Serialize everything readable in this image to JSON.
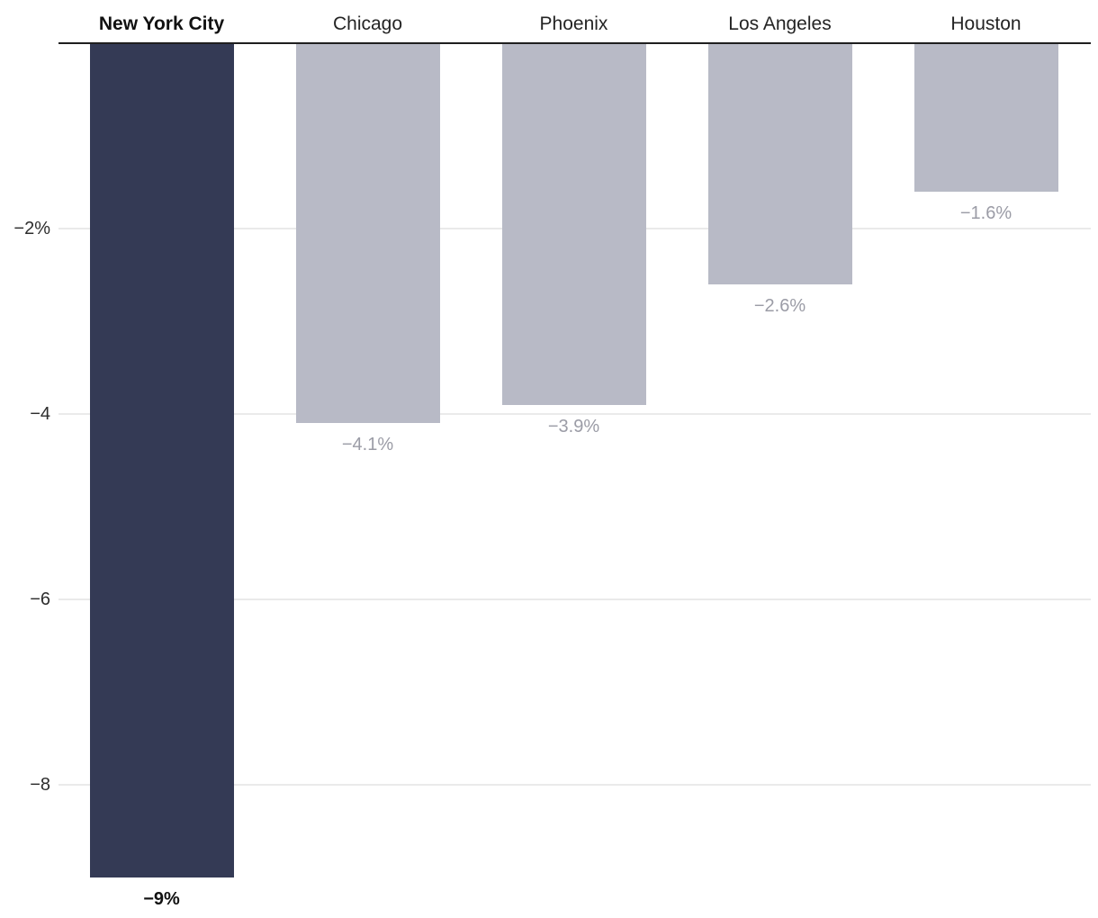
{
  "chart_data": {
    "type": "bar",
    "orientation": "vertical-negative",
    "title": "",
    "categories": [
      "New York City",
      "Chicago",
      "Phoenix",
      "Los Angeles",
      "Houston"
    ],
    "values": [
      -9,
      -4.1,
      -3.9,
      -2.6,
      -1.6
    ],
    "value_labels": [
      "−9%",
      "−4.1%",
      "−3.9%",
      "−2.6%",
      "−1.6%"
    ],
    "highlight_index": 0,
    "y_ticks": [
      {
        "value": -2,
        "label": "−2%"
      },
      {
        "value": -4,
        "label": "−4"
      },
      {
        "value": -6,
        "label": "−6"
      },
      {
        "value": -8,
        "label": "−8"
      }
    ],
    "ylim": [
      -9.4,
      0
    ],
    "grid": true,
    "legend_position": "none",
    "colors": {
      "highlight_bar": "#343a55",
      "default_bar": "#b8bac6",
      "zero_axis_line": "#1f1f1f",
      "gridline": "#eaeaea",
      "tick_label": "#2d2d2d",
      "category_label": "#242424",
      "value_label_default": "#9b9ca6",
      "value_label_highlight": "#111111",
      "background": "#ffffff"
    }
  }
}
